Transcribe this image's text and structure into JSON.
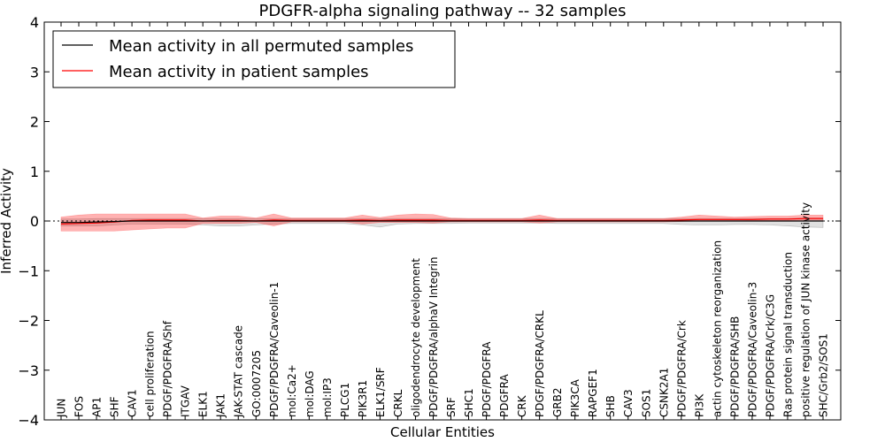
{
  "chart_data": {
    "type": "line",
    "title": "PDGFR-alpha signaling pathway -- 32 samples",
    "xlabel": "Cellular Entities",
    "ylabel": "Inferred Activity",
    "ylim": [
      -4,
      4
    ],
    "yticks": [
      -4,
      -3,
      -2,
      -1,
      0,
      1,
      2,
      3,
      4
    ],
    "ytick_labels": [
      "−4",
      "−3",
      "−2",
      "−1",
      "0",
      "1",
      "2",
      "3",
      "4"
    ],
    "legend_position": "top-left",
    "categories": [
      "JUN",
      "FOS",
      "AP1",
      "SHF",
      "CAV1",
      "cell proliferation",
      "PDGF/PDGFRA/Shf",
      "ITGAV",
      "ELK1",
      "JAK1",
      "JAK-STAT cascade",
      "GO:0007205",
      "PDGF/PDGFRA/Caveolin-1",
      "mol:Ca2+",
      "mol:DAG",
      "mol:IP3",
      "PLCG1",
      "PIK3R1",
      "ELK1/SRF",
      "CRKL",
      "oligodendrocyte development",
      "PDGF/PDGFRA/alphaV Integrin",
      "SRF",
      "SHC1",
      "PDGF/PDGFRA",
      "PDGFRA",
      "CRK",
      "PDGF/PDGFRA/CRKL",
      "GRB2",
      "PIK3CA",
      "RAPGEF1",
      "SHB",
      "CAV3",
      "SOS1",
      "CSNK2A1",
      "PDGF/PDGFRA/Crk",
      "PI3K",
      "actin cytoskeleton reorganization",
      "PDGF/PDGFRA/SHB",
      "PDGF/PDGFRA/Caveolin-3",
      "PDGF/PDGFRA/Crk/C3G",
      "Ras protein signal transduction",
      "positive regulation of JUN kinase activity",
      "SHC/Grb2/SOS1"
    ],
    "series": [
      {
        "name": "Mean activity in all permuted samples",
        "color": "#000000",
        "values": [
          -0.03,
          -0.03,
          -0.02,
          -0.01,
          0.0,
          0.0,
          0.0,
          0.0,
          0.0,
          0.0,
          0.0,
          0.0,
          0.0,
          0.0,
          0.0,
          0.0,
          0.0,
          0.0,
          0.0,
          0.0,
          0.0,
          0.0,
          0.0,
          0.0,
          0.0,
          0.0,
          0.0,
          0.0,
          0.0,
          0.0,
          0.0,
          0.0,
          0.0,
          0.0,
          0.0,
          0.0,
          0.0,
          0.0,
          0.0,
          0.0,
          0.0,
          0.0,
          0.0,
          0.0
        ],
        "lower": [
          -0.1,
          -0.1,
          -0.1,
          -0.08,
          -0.06,
          -0.06,
          -0.06,
          -0.06,
          -0.08,
          -0.1,
          -0.1,
          -0.08,
          -0.06,
          -0.05,
          -0.05,
          -0.05,
          -0.05,
          -0.08,
          -0.12,
          -0.06,
          -0.05,
          -0.05,
          -0.05,
          -0.04,
          -0.04,
          -0.04,
          -0.04,
          -0.04,
          -0.05,
          -0.05,
          -0.05,
          -0.05,
          -0.05,
          -0.05,
          -0.05,
          -0.07,
          -0.08,
          -0.08,
          -0.07,
          -0.07,
          -0.08,
          -0.1,
          -0.12,
          -0.13
        ],
        "upper": [
          0.04,
          0.04,
          0.05,
          0.05,
          0.05,
          0.05,
          0.05,
          0.05,
          0.05,
          0.05,
          0.05,
          0.05,
          0.05,
          0.05,
          0.05,
          0.05,
          0.05,
          0.05,
          0.05,
          0.05,
          0.05,
          0.05,
          0.05,
          0.05,
          0.05,
          0.05,
          0.05,
          0.05,
          0.05,
          0.05,
          0.05,
          0.05,
          0.05,
          0.05,
          0.05,
          0.05,
          0.05,
          0.05,
          0.05,
          0.05,
          0.05,
          0.05,
          0.06,
          0.06
        ]
      },
      {
        "name": "Mean activity in patient samples",
        "color": "#ff0000",
        "values": [
          -0.06,
          -0.05,
          -0.04,
          -0.02,
          0.01,
          0.02,
          0.02,
          0.02,
          0.0,
          0.01,
          0.01,
          0.0,
          0.02,
          0.01,
          0.01,
          0.01,
          0.01,
          0.02,
          0.01,
          0.02,
          0.02,
          0.02,
          0.01,
          0.01,
          0.01,
          0.01,
          0.01,
          0.02,
          0.01,
          0.01,
          0.01,
          0.01,
          0.01,
          0.01,
          0.01,
          0.02,
          0.03,
          0.03,
          0.03,
          0.03,
          0.04,
          0.04,
          0.05,
          0.05
        ],
        "lower": [
          -0.2,
          -0.2,
          -0.2,
          -0.2,
          -0.18,
          -0.16,
          -0.14,
          -0.14,
          -0.05,
          -0.05,
          -0.05,
          -0.03,
          -0.1,
          -0.02,
          -0.02,
          -0.02,
          -0.02,
          -0.06,
          -0.03,
          -0.03,
          -0.03,
          -0.04,
          -0.02,
          -0.02,
          -0.02,
          -0.02,
          -0.02,
          -0.04,
          -0.02,
          -0.02,
          -0.02,
          -0.02,
          -0.02,
          -0.02,
          -0.02,
          -0.01,
          0.0,
          0.0,
          0.0,
          0.01,
          0.01,
          0.01,
          0.02,
          0.02
        ],
        "upper": [
          0.08,
          0.12,
          0.14,
          0.14,
          0.14,
          0.14,
          0.14,
          0.14,
          0.06,
          0.1,
          0.1,
          0.06,
          0.14,
          0.06,
          0.06,
          0.06,
          0.06,
          0.12,
          0.07,
          0.12,
          0.14,
          0.13,
          0.06,
          0.05,
          0.05,
          0.05,
          0.05,
          0.12,
          0.05,
          0.05,
          0.05,
          0.05,
          0.05,
          0.05,
          0.05,
          0.08,
          0.12,
          0.1,
          0.08,
          0.09,
          0.1,
          0.1,
          0.12,
          0.12
        ]
      }
    ]
  }
}
